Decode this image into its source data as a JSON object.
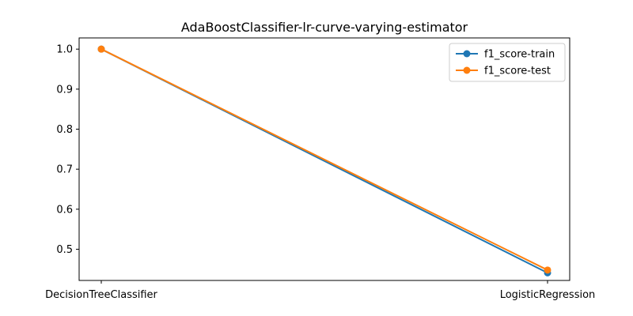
{
  "chart_data": {
    "type": "line",
    "title": "AdaBoostClassifier-lr-curve-varying-estimator",
    "xlabel": "",
    "ylabel": "",
    "categories": [
      "DecisionTreeClassifier",
      "LogisticRegression"
    ],
    "series": [
      {
        "name": "f1_score-train",
        "values": [
          1.0,
          0.441
        ],
        "color": "#1f77b4"
      },
      {
        "name": "f1_score-test",
        "values": [
          1.0,
          0.448
        ],
        "color": "#ff7f0e"
      }
    ],
    "ylim": [
      0.422,
      1.028
    ],
    "yticks": [
      0.5,
      0.6,
      0.7,
      0.8,
      0.9,
      1.0
    ],
    "ytick_labels": [
      "0.5",
      "0.6",
      "0.7",
      "0.8",
      "0.9",
      "1.0"
    ],
    "grid": false,
    "legend_position": "top-right"
  }
}
